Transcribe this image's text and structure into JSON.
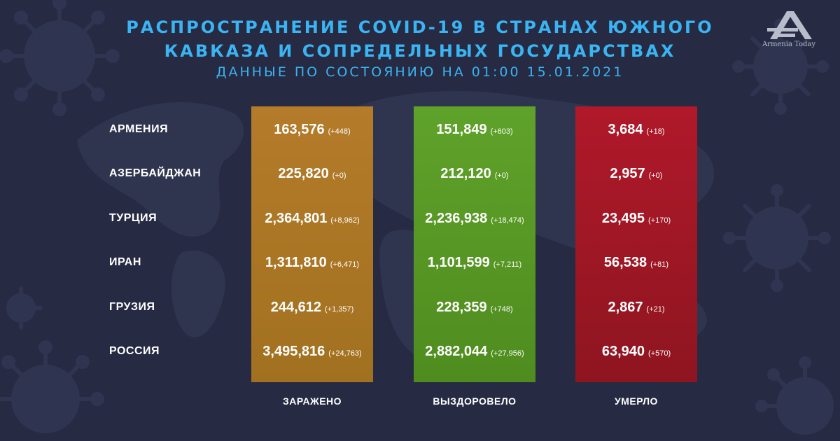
{
  "title_line1": "РАСПРОСТРАНЕНИЕ COVID-19 В СТРАНАХ ЮЖНОГО",
  "title_line2": "КАВКАЗА И СОПРЕДЕЛЬНЫХ ГОСУДАРСТВАХ",
  "subtitle": "ДАННЫЕ ПО СОСТОЯНИЮ НА 01:00  15.01.2021",
  "logo_text": "Armenia Today",
  "colors": {
    "background": "#262a43",
    "title": "#3ab4f2",
    "infected": "#a8751f",
    "recovered": "#5a9a25",
    "died": "#a51725"
  },
  "chart_data": {
    "type": "table",
    "title": "РАСПРОСТРАНЕНИЕ COVID-19 В СТРАНАХ ЮЖНОГО КАВКАЗА И СОПРЕДЕЛЬНЫХ ГОСУДАРСТВАХ",
    "subtitle": "ДАННЫЕ ПО СОСТОЯНИЮ НА 01:00  15.01.2021",
    "columns": [
      "ЗАРАЖЕНО",
      "ВЫЗДОРОВЕЛО",
      "УМЕРЛО"
    ],
    "rows": [
      {
        "country": "АРМЕНИЯ",
        "infected": "163,576",
        "infected_delta": "(+448)",
        "recovered": "151,849",
        "recovered_delta": "(+603)",
        "died": "3,684",
        "died_delta": "(+18)"
      },
      {
        "country": "АЗЕРБАЙДЖАН",
        "infected": "225,820",
        "infected_delta": "(+0)",
        "recovered": "212,120",
        "recovered_delta": "(+0)",
        "died": "2,957",
        "died_delta": "(+0)"
      },
      {
        "country": "ТУРЦИЯ",
        "infected": "2,364,801",
        "infected_delta": "(+8,962)",
        "recovered": "2,236,938",
        "recovered_delta": "(+18,474)",
        "died": "23,495",
        "died_delta": "(+170)"
      },
      {
        "country": "ИРАН",
        "infected": "1,311,810",
        "infected_delta": "(+6,471)",
        "recovered": "1,101,599",
        "recovered_delta": "(+7,211)",
        "died": "56,538",
        "died_delta": "(+81)"
      },
      {
        "country": "ГРУЗИЯ",
        "infected": "244,612",
        "infected_delta": "(+1,357)",
        "recovered": "228,359",
        "recovered_delta": "(+748)",
        "died": "2,867",
        "died_delta": "(+21)"
      },
      {
        "country": "РОССИЯ",
        "infected": "3,495,816",
        "infected_delta": "(+24,763)",
        "recovered": "2,882,044",
        "recovered_delta": "(+27,956)",
        "died": "63,940",
        "died_delta": "(+570)"
      }
    ]
  }
}
